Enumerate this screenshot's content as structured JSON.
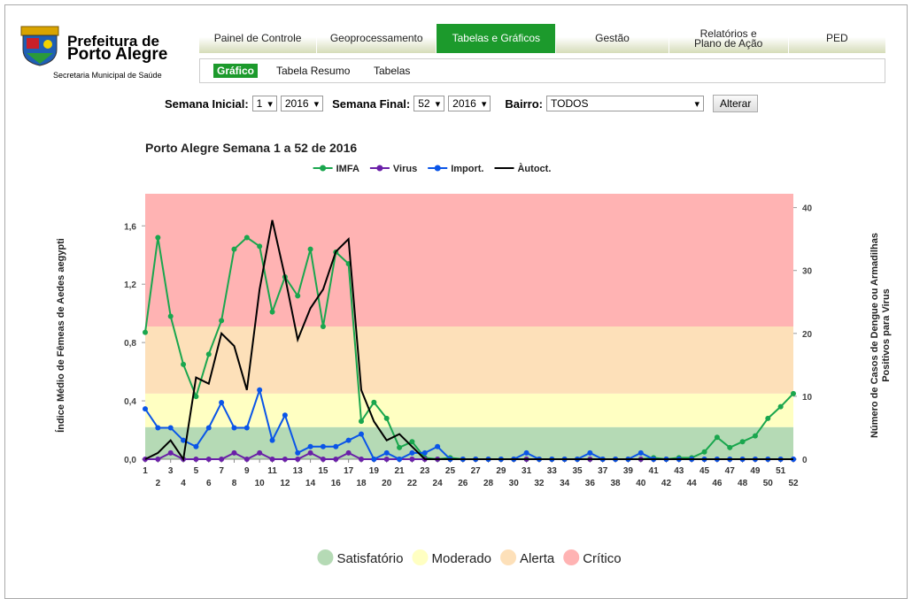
{
  "header": {
    "line1": "Prefeitura de",
    "line2": "Porto Alegre",
    "sub": "Secretaria Municipal de Saúde"
  },
  "nav": {
    "tabs": [
      "Painel de Controle",
      "Geoprocessamento",
      "Tabelas e Gráficos",
      "Gestão",
      "Relatórios e Plano de Ação",
      "PED"
    ],
    "subtabs": [
      "Gráfico",
      "Tabela Resumo",
      "Tabelas"
    ]
  },
  "controls": {
    "start_label": "Semana Inicial:",
    "start_week": "1",
    "start_year": "2016",
    "end_label": "Semana Final:",
    "end_week": "52",
    "end_year": "2016",
    "district_label": "Bairro:",
    "district": "TODOS",
    "button": "Alterar"
  },
  "chart_data": {
    "type": "line",
    "title": "Porto Alegre Semana 1 a 52 de 2016",
    "y_label": "Índice Médio de Fêmeas de Aedes aegypti",
    "y2_label": [
      "Número de Casos de Dengue ou Armadilhas",
      "Positivos para Virus"
    ],
    "x": [
      1,
      2,
      3,
      4,
      5,
      6,
      7,
      8,
      9,
      10,
      11,
      12,
      13,
      14,
      15,
      16,
      17,
      18,
      19,
      20,
      21,
      22,
      23,
      24,
      25,
      26,
      27,
      28,
      29,
      30,
      31,
      32,
      33,
      34,
      35,
      36,
      37,
      38,
      39,
      40,
      41,
      42,
      43,
      44,
      45,
      46,
      47,
      48,
      49,
      50,
      51,
      52
    ],
    "xlim": [
      1,
      52
    ],
    "ylim": [
      0,
      1.82
    ],
    "yticks": [
      {
        "value": 0,
        "label": "0,0"
      },
      {
        "value": 0.4,
        "label": "0,4"
      },
      {
        "value": 0.8,
        "label": "0,8"
      },
      {
        "value": 1.2,
        "label": "1,2"
      },
      {
        "value": 1.6,
        "label": "1,6"
      }
    ],
    "y2lim": [
      0,
      42.2
    ],
    "y2ticks": [
      0,
      10,
      20,
      30,
      40
    ],
    "bands": [
      {
        "name": "Satisfatório",
        "color": "#b5dab5",
        "from": 0,
        "to": 0.22
      },
      {
        "name": "Moderado",
        "color": "#ffffc2",
        "from": 0.22,
        "to": 0.45
      },
      {
        "name": "Alerta",
        "color": "#fde0b9",
        "from": 0.45,
        "to": 0.91
      },
      {
        "name": "Crítico",
        "color": "#ffb3b3",
        "from": 0.91,
        "to": 1.82
      }
    ],
    "series": [
      {
        "name": "IMFA",
        "color": "#1aa64e",
        "axis": "y",
        "marker": true,
        "values": [
          0.87,
          1.52,
          0.98,
          0.65,
          0.43,
          0.72,
          0.95,
          1.44,
          1.52,
          1.46,
          1.01,
          1.25,
          1.12,
          1.44,
          0.91,
          1.42,
          1.34,
          0.26,
          0.39,
          0.28,
          0.08,
          0.12,
          0.01,
          0,
          0.01,
          0,
          0,
          0,
          0,
          0,
          0,
          0,
          0,
          0,
          0,
          0,
          0,
          0,
          0,
          0,
          0.01,
          0,
          0.01,
          0.01,
          0.05,
          0.15,
          0.08,
          0.12,
          0.16,
          0.28,
          0.36,
          0.45
        ]
      },
      {
        "name": "Virus",
        "color": "#6a1fa8",
        "axis": "y2",
        "marker": true,
        "values": [
          0,
          0,
          1,
          0,
          0,
          0,
          0,
          1,
          0,
          1,
          0,
          0,
          0,
          1,
          0,
          0,
          1,
          0,
          0,
          0,
          0,
          0,
          0,
          0,
          0,
          0,
          0,
          0,
          0,
          0,
          0,
          0,
          0,
          0,
          0,
          0,
          0,
          0,
          0,
          0,
          0,
          0,
          0,
          0,
          0,
          0,
          0,
          0,
          0,
          0,
          0,
          0
        ]
      },
      {
        "name": "Import.",
        "color": "#0a55e8",
        "axis": "y2",
        "marker": true,
        "values": [
          8,
          5,
          5,
          3,
          2,
          5,
          9,
          5,
          5,
          11,
          3,
          7,
          1,
          2,
          2,
          2,
          3,
          4,
          0,
          1,
          0,
          1,
          1,
          2,
          0,
          0,
          0,
          0,
          0,
          0,
          1,
          0,
          0,
          0,
          0,
          1,
          0,
          0,
          0,
          1,
          0,
          0,
          0,
          0,
          0,
          0,
          0,
          0,
          0,
          0,
          0,
          0
        ]
      },
      {
        "name": "Àutoct.",
        "color": "#000000",
        "axis": "y2",
        "marker": false,
        "values": [
          0,
          1,
          3,
          0,
          13,
          12,
          20,
          18,
          11,
          27,
          38,
          29,
          19,
          24,
          27,
          33,
          35,
          11,
          6,
          3,
          4,
          2,
          0,
          0,
          0,
          0,
          0,
          0,
          0,
          0,
          0,
          0,
          0,
          0,
          0,
          0,
          0,
          0,
          0,
          0,
          0,
          0,
          0,
          0,
          0,
          0,
          0,
          0,
          0,
          0,
          0,
          0
        ]
      }
    ]
  }
}
